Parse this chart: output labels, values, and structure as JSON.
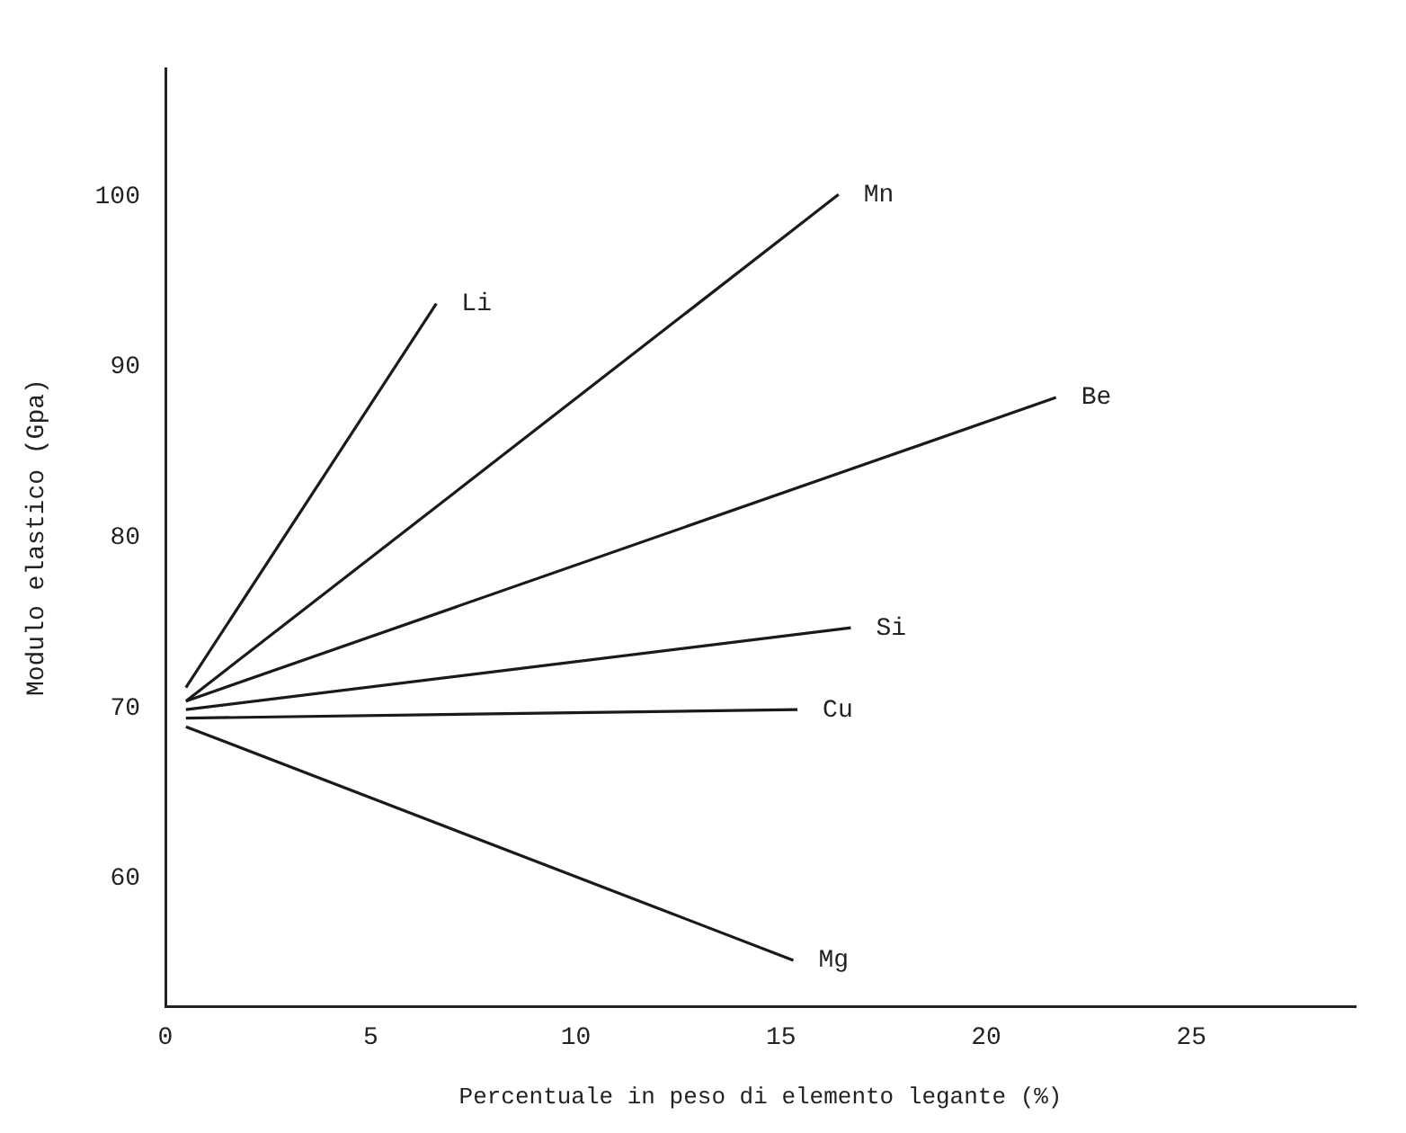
{
  "chart_data": {
    "type": "line",
    "xlabel": "Percentuale in peso di elemento legante (%)",
    "ylabel": "Modulo elastico (Gpa)",
    "xlim": [
      0,
      29
    ],
    "ylim": [
      52.5,
      107.5
    ],
    "xticks": [
      0,
      5,
      10,
      15,
      20,
      25
    ],
    "yticks": [
      60,
      70,
      80,
      90,
      100
    ],
    "grid": false,
    "legend": false,
    "marker": "none",
    "line_style": "solid",
    "series": [
      {
        "name": "Li",
        "color": "#1a1a1a",
        "x": [
          0.5,
          6.6
        ],
        "values": [
          71.2,
          93.7
        ]
      },
      {
        "name": "Mn",
        "color": "#1a1a1a",
        "x": [
          0.5,
          16.4
        ],
        "values": [
          70.4,
          100.1
        ]
      },
      {
        "name": "Be",
        "color": "#1a1a1a",
        "x": [
          0.5,
          21.7
        ],
        "values": [
          70.4,
          88.2
        ]
      },
      {
        "name": "Si",
        "color": "#1a1a1a",
        "x": [
          0.5,
          16.7
        ],
        "values": [
          69.9,
          74.7
        ]
      },
      {
        "name": "Cu",
        "color": "#1a1a1a",
        "x": [
          0.5,
          15.4
        ],
        "values": [
          69.4,
          69.9
        ]
      },
      {
        "name": "Mg",
        "color": "#1a1a1a",
        "x": [
          0.5,
          15.3
        ],
        "values": [
          68.9,
          55.2
        ]
      }
    ]
  }
}
